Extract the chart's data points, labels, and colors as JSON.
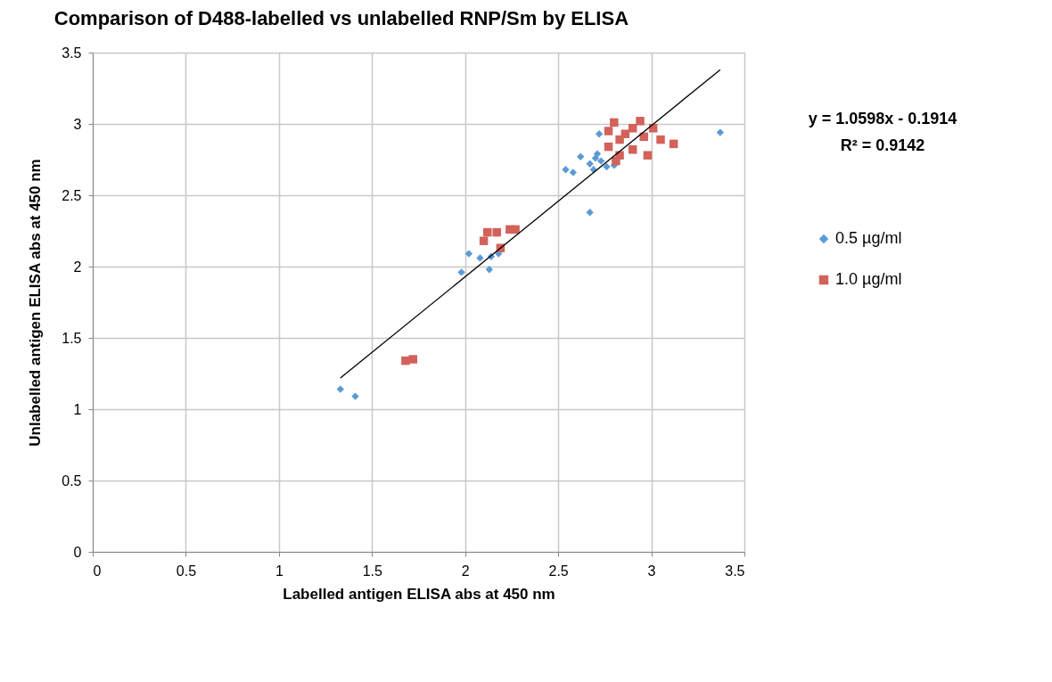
{
  "chart_data": {
    "type": "scatter",
    "title": "Comparison of D488-labelled vs unlabelled RNP/Sm by ELISA",
    "xlabel": "Labelled antigen ELISA abs at 450 nm",
    "ylabel": "Unlabelled antigen ELISA abs at 450 nm",
    "xlim": [
      0,
      3.5
    ],
    "xticks": [
      0,
      0.5,
      1,
      1.5,
      2,
      2.5,
      3,
      3.5
    ],
    "ylim": [
      0,
      3.5
    ],
    "yticks": [
      0,
      0.5,
      1,
      1.5,
      2,
      2.5,
      3,
      3.5
    ],
    "grid": true,
    "legend": "right",
    "annotations": [
      "y = 1.0598x - 0.1914",
      "R² = 0.9142"
    ],
    "series": [
      {
        "name": "0.5 µg/ml",
        "marker": "diamond",
        "color": "#5b9bd5",
        "x": [
          1.33,
          1.41,
          1.98,
          2.02,
          2.08,
          2.13,
          2.14,
          2.18,
          2.67,
          2.54,
          2.58,
          2.62,
          2.72,
          2.67,
          2.69,
          2.7,
          2.73,
          2.76,
          2.8,
          2.71,
          3.37
        ],
        "values": [
          1.14,
          1.09,
          1.96,
          2.09,
          2.06,
          1.98,
          2.07,
          2.09,
          2.38,
          2.68,
          2.66,
          2.77,
          2.93,
          2.72,
          2.68,
          2.76,
          2.74,
          2.7,
          2.71,
          2.79,
          2.94
        ]
      },
      {
        "name": "1.0 µg/ml",
        "marker": "square",
        "color": "#d2625a",
        "x": [
          1.68,
          1.72,
          2.1,
          2.12,
          2.17,
          2.19,
          2.24,
          2.27,
          2.8,
          2.94,
          2.77,
          2.9,
          3.01,
          3.05,
          3.12,
          2.98,
          2.77,
          2.83,
          2.9,
          2.96,
          2.83,
          2.81,
          2.86
        ],
        "values": [
          1.34,
          1.35,
          2.18,
          2.24,
          2.24,
          2.13,
          2.26,
          2.26,
          3.01,
          3.02,
          2.95,
          2.97,
          2.97,
          2.89,
          2.86,
          2.78,
          2.84,
          2.78,
          2.82,
          2.91,
          2.89,
          2.74,
          2.93
        ]
      },
      {
        "type": "line",
        "marker": "none",
        "color": "#000000",
        "x": [
          1.33,
          3.37
        ],
        "values": [
          1.218,
          3.38
        ]
      }
    ]
  }
}
